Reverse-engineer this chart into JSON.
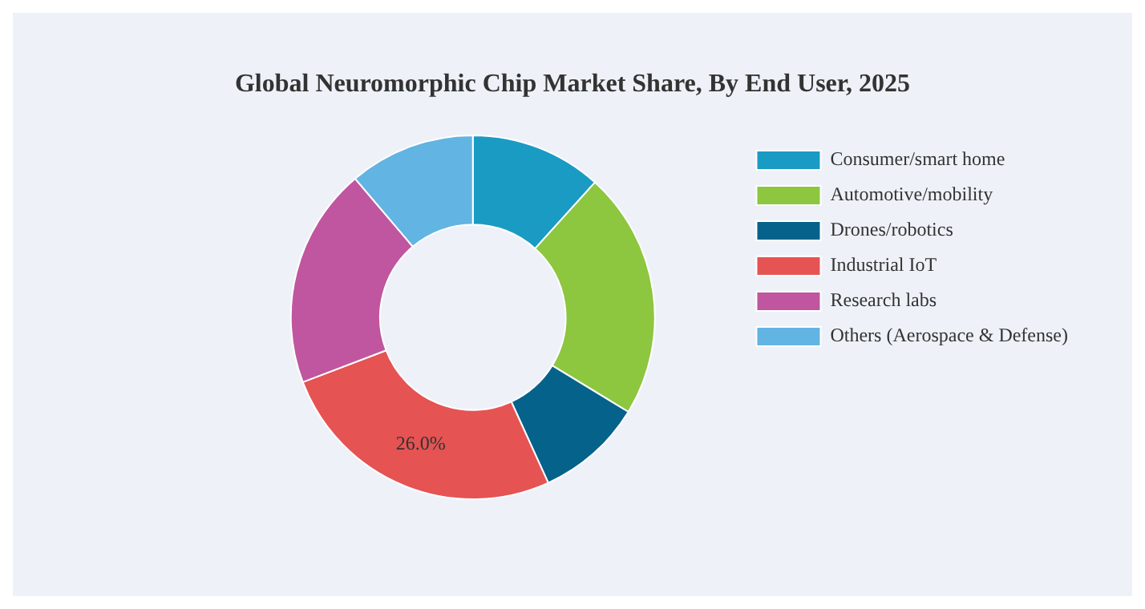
{
  "chart_data": {
    "type": "donut",
    "title": "Global Neuromorphic Chip Market Share, By End User, 2025",
    "categories": [
      "Consumer/smart home",
      "Automotive/mobility",
      "Drones/robotics",
      "Industrial IoT",
      "Research labs",
      "Others (Aerospace & Defense)"
    ],
    "values": [
      11.7,
      22,
      9.5,
      26,
      19.6,
      11.2
    ],
    "colors": [
      "#1a9bc4",
      "#8dc63f",
      "#05628a",
      "#e55353",
      "#c0569f",
      "#62b4e3"
    ],
    "value_labels": [
      null,
      null,
      null,
      "26.0%",
      null,
      null
    ],
    "legend": "right"
  }
}
